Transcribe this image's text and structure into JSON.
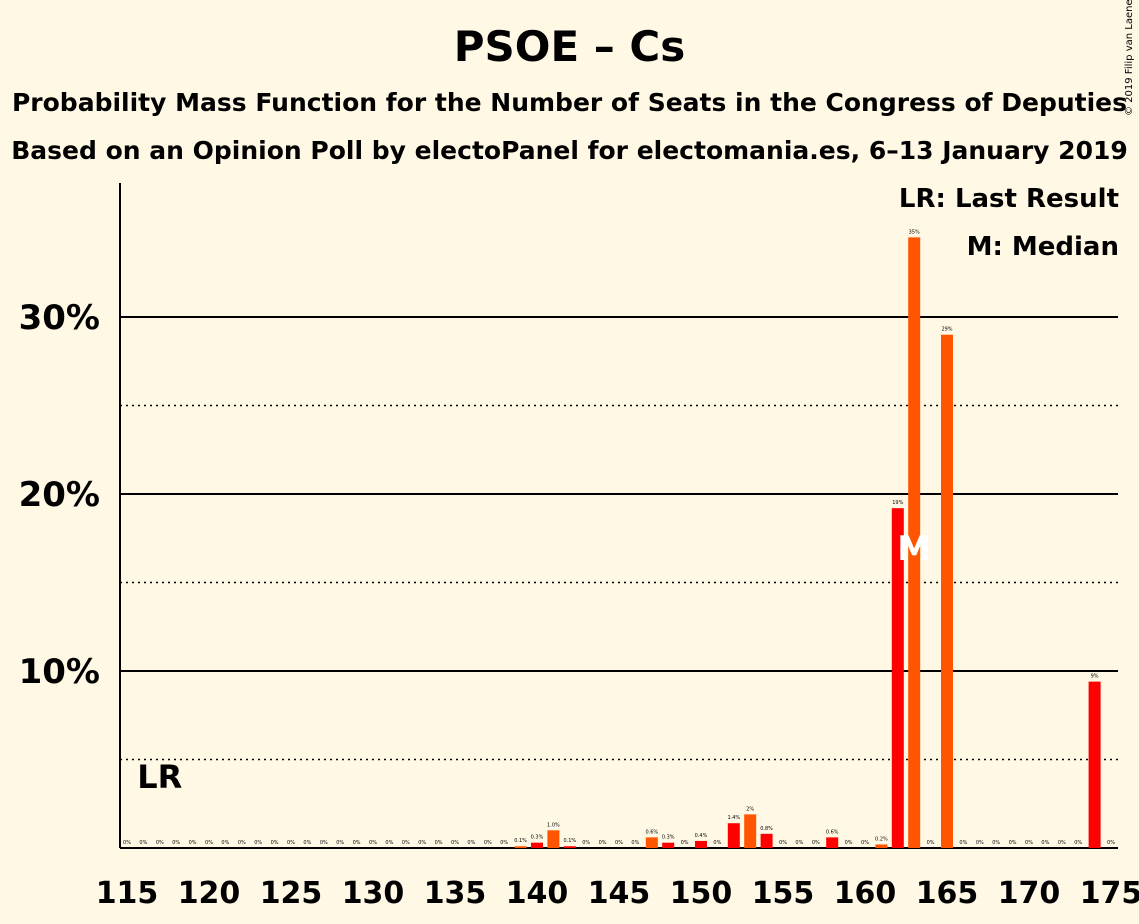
{
  "chart_data": {
    "type": "bar",
    "title": "PSOE – Cs",
    "subtitle": "Probability Mass Function for the Number of Seats in the Congress of Deputies",
    "subtitle2": "Based on an Opinion Poll by electoPanel for electomania.es, 6–13 January 2019",
    "copyright": "© 2019 Filip van Laenen",
    "legend": {
      "lr": "LR: Last Result",
      "m": "M: Median",
      "placement": "top-right"
    },
    "last_result_label": "LR",
    "median_label": "M",
    "last_result_seat": 117,
    "median_seat": 163,
    "xlim": [
      115,
      175
    ],
    "ylim": [
      0,
      37
    ],
    "x_ticks": [
      "115",
      "120",
      "125",
      "130",
      "135",
      "140",
      "145",
      "150",
      "155",
      "160",
      "165",
      "170",
      "175"
    ],
    "y_ticks": [
      {
        "value": 10,
        "label": "10%"
      },
      {
        "value": 20,
        "label": "20%"
      },
      {
        "value": 30,
        "label": "30%"
      }
    ],
    "grid": {
      "solid": [
        10,
        20,
        30
      ],
      "dotted": [
        5,
        15,
        25
      ]
    },
    "colors": {
      "bar_primary": "#FF0000",
      "bar_secondary": "#FF5500",
      "background": "#FFF8E5",
      "median_mark": "#FFFFFF"
    },
    "seats": [
      115,
      116,
      117,
      118,
      119,
      120,
      121,
      122,
      123,
      124,
      125,
      126,
      127,
      128,
      129,
      130,
      131,
      132,
      133,
      134,
      135,
      136,
      137,
      138,
      139,
      140,
      141,
      142,
      143,
      144,
      145,
      146,
      147,
      148,
      149,
      150,
      151,
      152,
      153,
      154,
      155,
      156,
      157,
      158,
      159,
      160,
      161,
      162,
      163,
      164,
      165,
      166,
      167,
      168,
      169,
      170,
      171,
      172,
      173,
      174,
      175
    ],
    "values": [
      0,
      0,
      0,
      0,
      0,
      0,
      0,
      0,
      0,
      0,
      0,
      0,
      0,
      0,
      0,
      0,
      0,
      0,
      0,
      0,
      0,
      0,
      0,
      0,
      0.1,
      0.3,
      1.0,
      0.1,
      0,
      0,
      0,
      0,
      0.6,
      0.3,
      0,
      0.4,
      0,
      1.4,
      1.9,
      0.8,
      0,
      0,
      0,
      0.6,
      0,
      0,
      0.2,
      19.2,
      34.5,
      0,
      29.0,
      0,
      0,
      0,
      0,
      0,
      0,
      0,
      0,
      9.4,
      0
    ],
    "labels": [
      "0%",
      "0%",
      "0%",
      "0%",
      "0%",
      "0%",
      "0%",
      "0%",
      "0%",
      "0%",
      "0%",
      "0%",
      "0%",
      "0%",
      "0%",
      "0%",
      "0%",
      "0%",
      "0%",
      "0%",
      "0%",
      "0%",
      "0%",
      "0%",
      "0.1%",
      "0.3%",
      "1.0%",
      "0.1%",
      "0%",
      "0%",
      "0%",
      "0%",
      "0.6%",
      "0.3%",
      "0%",
      "0.4%",
      "0%",
      "1.4%",
      "2%",
      "0.8%",
      "0%",
      "0%",
      "0%",
      "0.6%",
      "0%",
      "0%",
      "0.2%",
      "19%",
      "35%",
      "0%",
      "29%",
      "0%",
      "0%",
      "0%",
      "0%",
      "0%",
      "0%",
      "0%",
      "0%",
      "9%",
      "0%"
    ]
  }
}
